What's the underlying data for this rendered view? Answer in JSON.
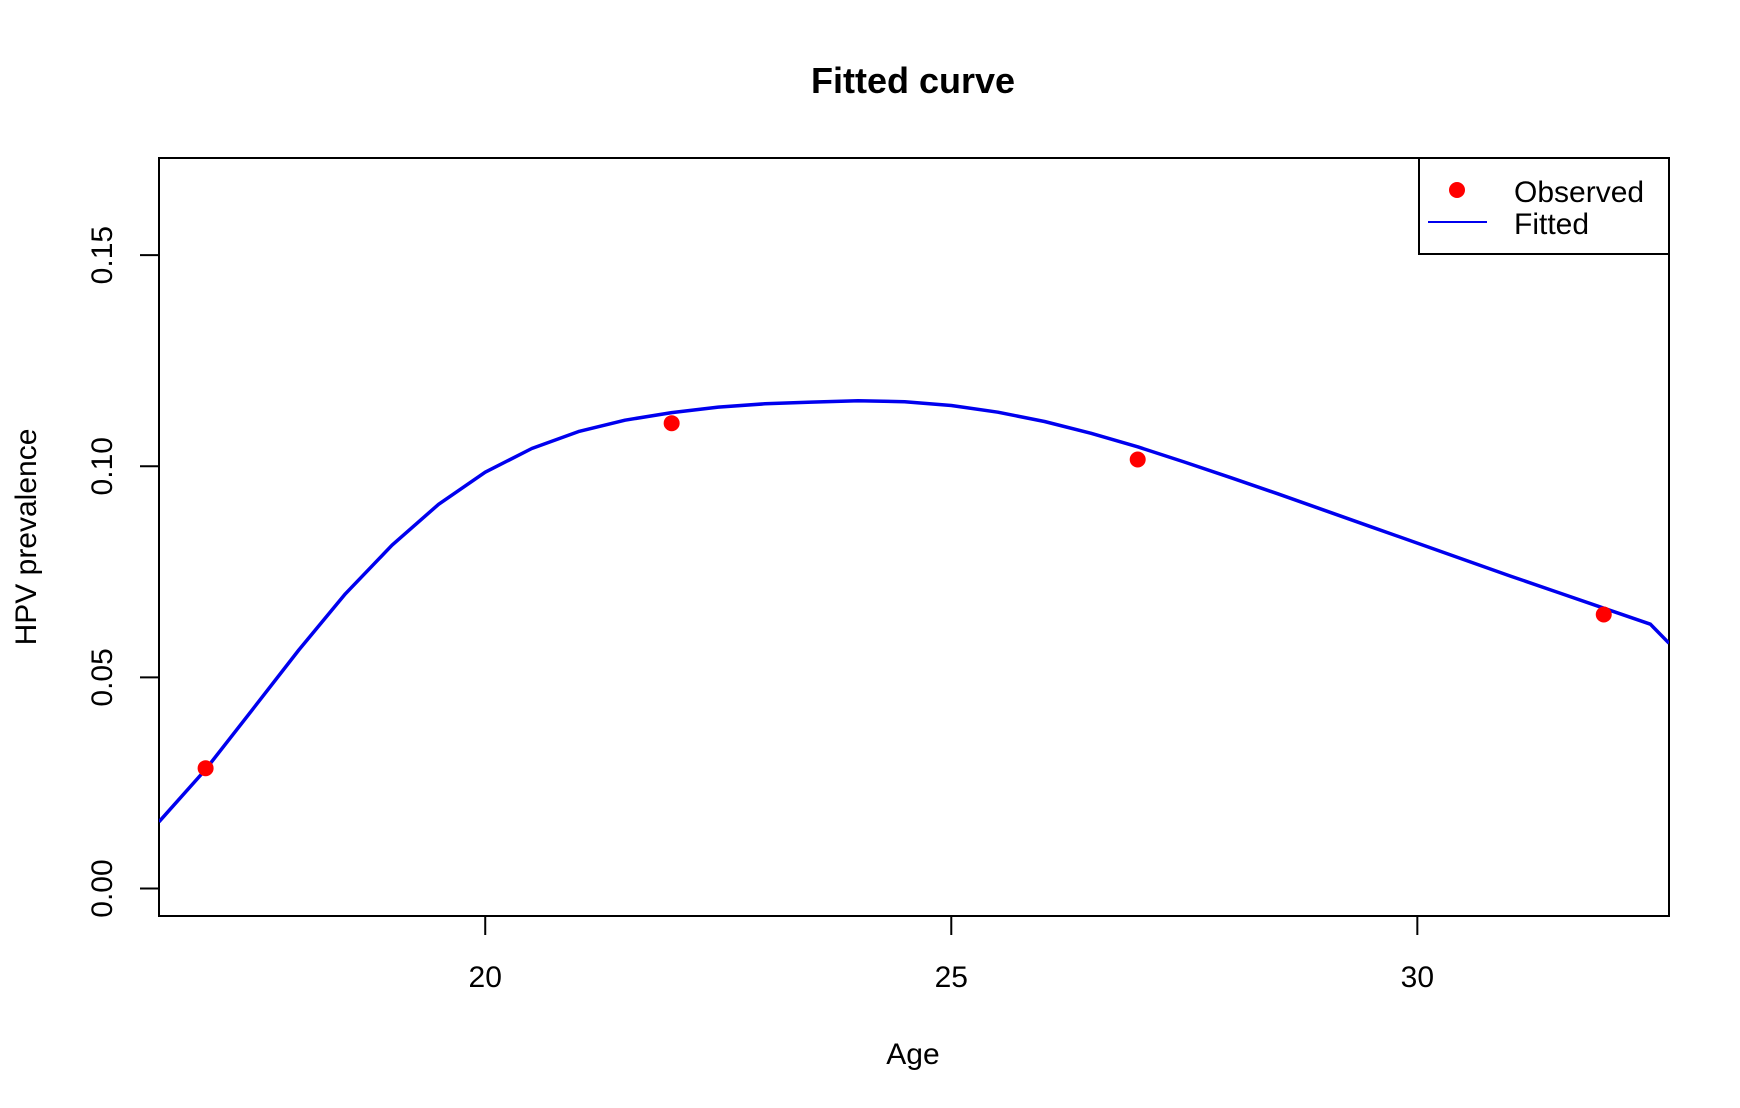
{
  "chart_data": {
    "type": "scatter",
    "title": "Fitted curve",
    "xlabel": "Age",
    "ylabel": "HPV prevalence",
    "xlim": [
      16.5,
      32.7
    ],
    "ylim": [
      -0.0065,
      0.173
    ],
    "x_ticks": [
      20,
      25,
      30
    ],
    "x_tick_labels": [
      "20",
      "25",
      "30"
    ],
    "y_ticks": [
      0,
      0.05,
      0.1,
      0.15
    ],
    "y_tick_labels": [
      "0.00",
      "0.05",
      "0.10",
      "0.15"
    ],
    "grid": false,
    "legend_position": "top-right",
    "series": [
      {
        "name": "Observed",
        "kind": "points",
        "color": "#ff0000",
        "x": [
          17.0,
          22.0,
          27.0,
          32.0
        ],
        "y": [
          0.0285,
          0.1102,
          0.1016,
          0.0649
        ]
      },
      {
        "name": "Fitted",
        "kind": "line",
        "color": "#0000ee",
        "x": [
          16.5,
          17.0,
          17.5,
          18.0,
          18.5,
          19.0,
          19.5,
          20.0,
          20.5,
          21.0,
          21.5,
          22.0,
          22.5,
          23.0,
          23.5,
          24.0,
          24.5,
          25.0,
          25.5,
          26.0,
          26.5,
          27.0,
          27.5,
          28.0,
          28.5,
          29.0,
          29.5,
          30.0,
          30.5,
          31.0,
          31.5,
          32.0,
          32.5,
          32.7
        ],
        "y": [
          0.0158,
          0.0282,
          0.0423,
          0.0565,
          0.0698,
          0.0813,
          0.091,
          0.0986,
          0.1042,
          0.1082,
          0.1109,
          0.1127,
          0.114,
          0.1148,
          0.1152,
          0.1155,
          0.1153,
          0.1144,
          0.1128,
          0.1106,
          0.1078,
          0.1046,
          0.101,
          0.0973,
          0.0935,
          0.0896,
          0.0857,
          0.0818,
          0.0779,
          0.074,
          0.0702,
          0.0664,
          0.0626,
          0.0581
        ]
      }
    ]
  }
}
